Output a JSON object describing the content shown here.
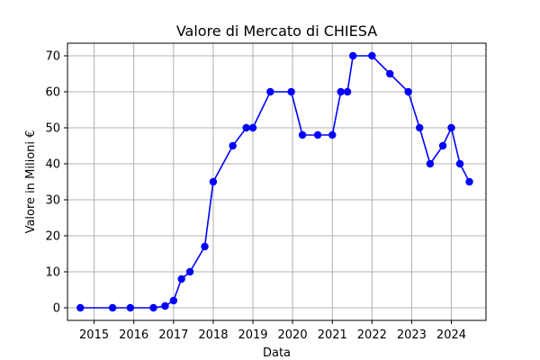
{
  "chart_data": {
    "type": "line",
    "title": "Valore di Mercato di CHIESA",
    "xlabel": "Data",
    "ylabel": "Valore in Milioni €",
    "x_tick_labels": [
      "2015",
      "2016",
      "2017",
      "2018",
      "2019",
      "2020",
      "2021",
      "2022",
      "2023",
      "2024"
    ],
    "y_tick_labels": [
      "0",
      "10",
      "20",
      "30",
      "40",
      "50",
      "60",
      "70"
    ],
    "xlim": [
      "2014-05-01",
      "2024-11-15"
    ],
    "ylim": [
      -3.5,
      73.5
    ],
    "grid": true,
    "series": [
      {
        "color": "#0000ff",
        "marker": "circle",
        "x": [
          "2014-08-27",
          "2015-06-20",
          "2015-11-30",
          "2016-06-30",
          "2016-10-15",
          "2017-01-01",
          "2017-03-15",
          "2017-06-01",
          "2017-10-15",
          "2018-01-01",
          "2018-06-30",
          "2018-11-01",
          "2019-01-01",
          "2019-06-10",
          "2019-12-20",
          "2020-04-01",
          "2020-08-20",
          "2021-01-01",
          "2021-03-20",
          "2021-05-20",
          "2021-07-10",
          "2022-01-01",
          "2022-06-15",
          "2022-12-01",
          "2023-03-15",
          "2023-06-20",
          "2023-10-15",
          "2024-01-01",
          "2024-03-20",
          "2024-06-15"
        ],
        "values": [
          0,
          0,
          0,
          0,
          0.5,
          2,
          8,
          10,
          17,
          35,
          45,
          50,
          50,
          60,
          60,
          48,
          48,
          48,
          60,
          60,
          70,
          70,
          65,
          60,
          50,
          40,
          45,
          50,
          40,
          35
        ]
      }
    ]
  }
}
